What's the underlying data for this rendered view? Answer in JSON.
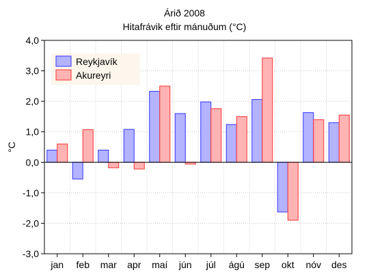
{
  "chart_data": {
    "type": "bar",
    "title": "Árið 2008",
    "subtitle": "Hitafrávik eftir mánuðum (°C)",
    "xlabel": "",
    "ylabel": "°C",
    "ylim": [
      -3.0,
      4.0
    ],
    "yticks": [
      "-3,0",
      "-2,0",
      "-1,0",
      "0,0",
      "1,0",
      "2,0",
      "3,0",
      "4,0"
    ],
    "categories": [
      "jan",
      "feb",
      "mar",
      "apr",
      "maí",
      "jún",
      "júl",
      "ágú",
      "sep",
      "okt",
      "nóv",
      "des"
    ],
    "grid": true,
    "legend_position": "top-left",
    "series": [
      {
        "name": "Reykjavík",
        "fill": "#b3b3ff",
        "stroke": "#3333ff",
        "values": [
          0.4,
          -0.55,
          0.4,
          1.08,
          2.33,
          1.6,
          1.98,
          1.24,
          2.06,
          -1.63,
          1.63,
          1.3
        ]
      },
      {
        "name": "Akureyri",
        "fill": "#ffb3b3",
        "stroke": "#ff3333",
        "values": [
          0.6,
          1.07,
          -0.18,
          -0.22,
          2.5,
          -0.06,
          1.76,
          1.5,
          3.42,
          -1.9,
          1.4,
          1.55
        ]
      }
    ]
  }
}
